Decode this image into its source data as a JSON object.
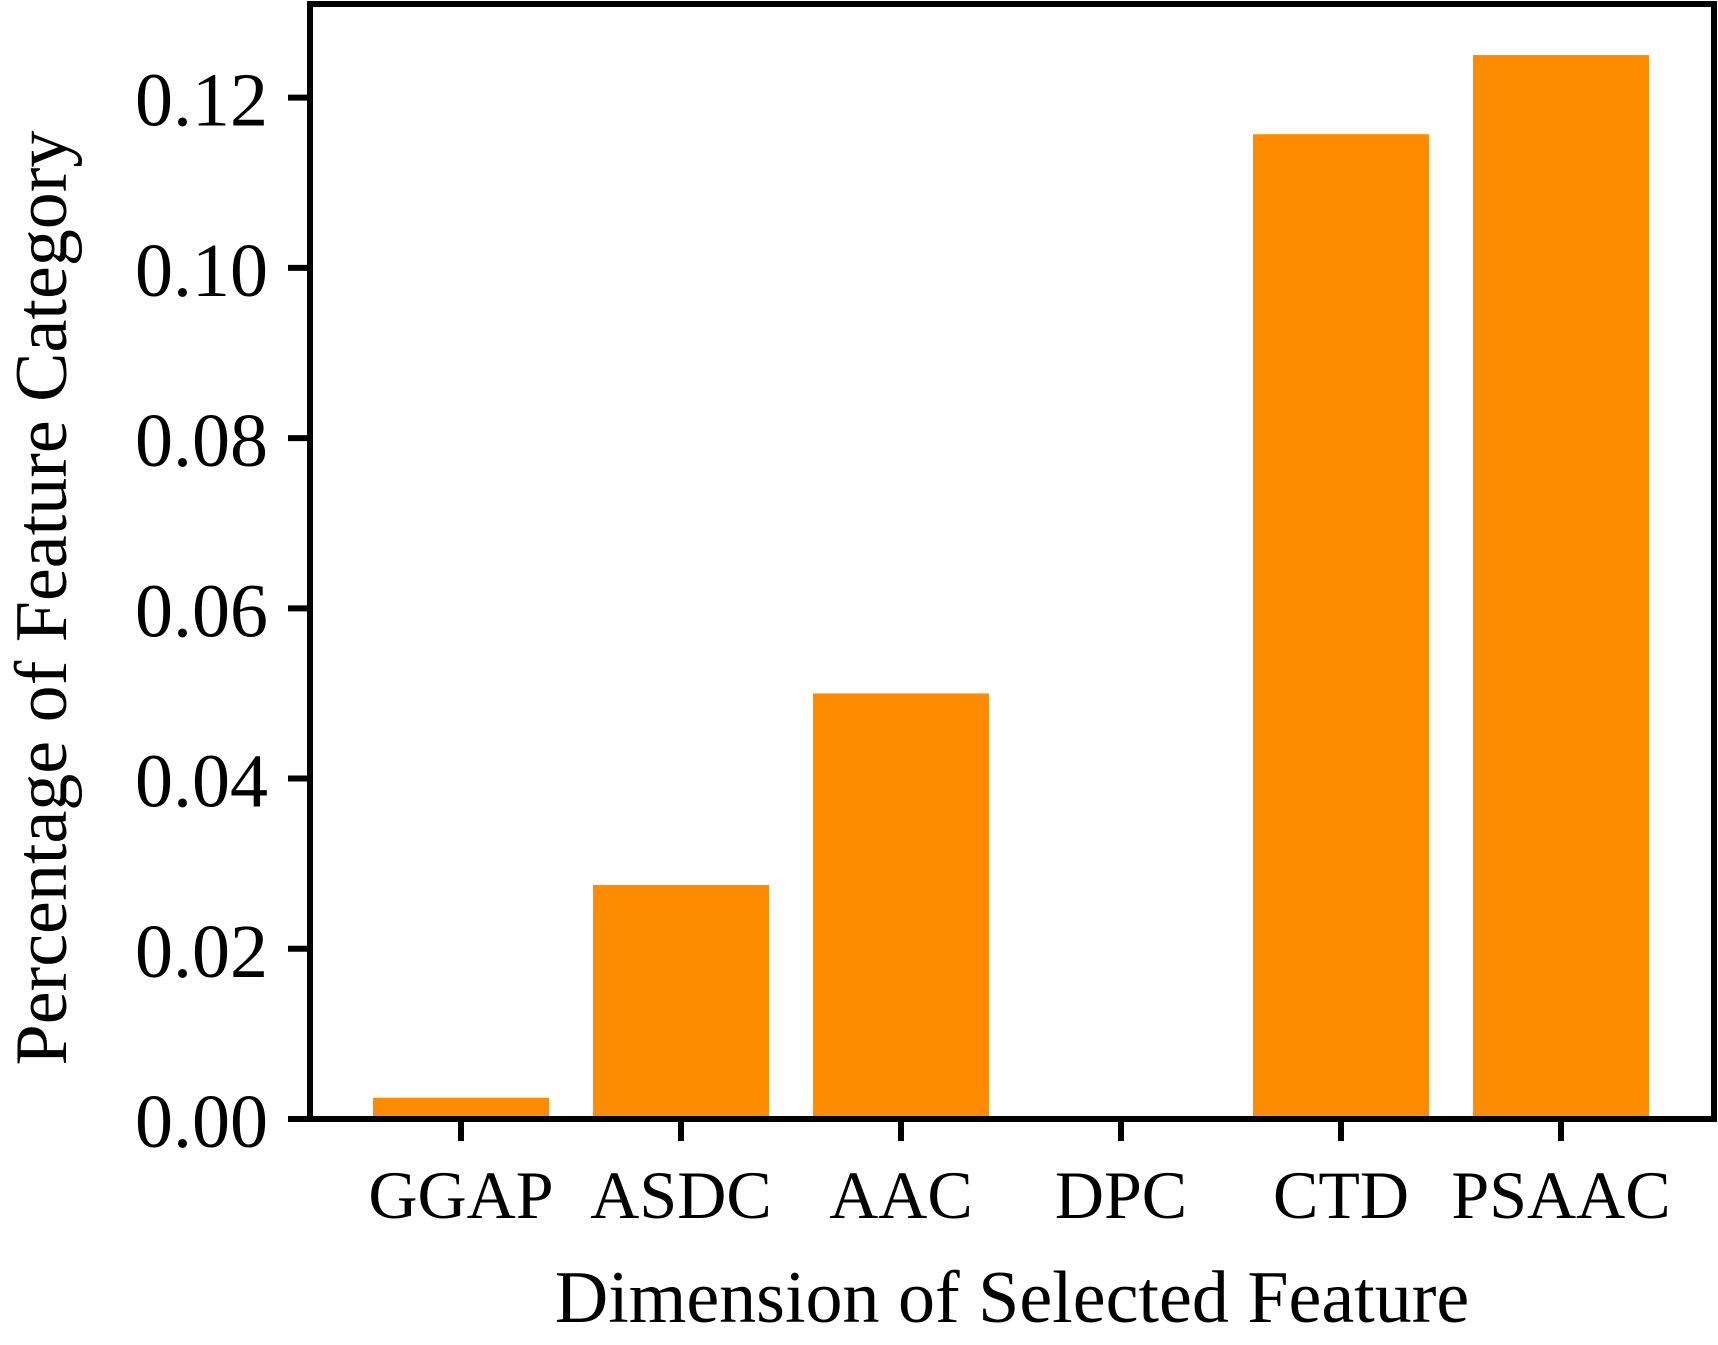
{
  "chart_data": {
    "type": "bar",
    "title": "",
    "xlabel": "Dimension of Selected Feature",
    "ylabel": "Percentage of Feature Category",
    "categories": [
      "GGAP",
      "ASDC",
      "AAC",
      "DPC",
      "CTD",
      "PSAAC"
    ],
    "values": [
      0.0025,
      0.0275,
      0.05,
      0.0,
      0.1157,
      0.125
    ],
    "ylim": [
      0,
      0.131
    ],
    "yticks": [
      "0.00",
      "0.02",
      "0.04",
      "0.06",
      "0.08",
      "0.10",
      "0.12"
    ],
    "grid": false,
    "legend": "none",
    "bar_color": "#FF8C00"
  }
}
